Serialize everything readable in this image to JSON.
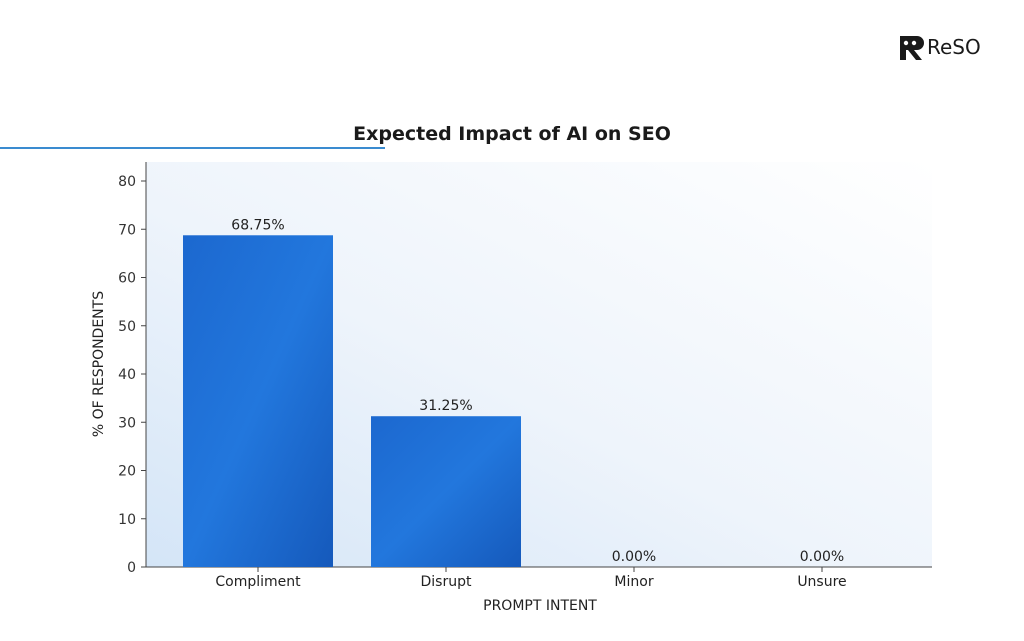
{
  "brand": {
    "name": "ReSO",
    "icon": "reso-logo-icon"
  },
  "colors": {
    "bar": "#1f6fd6",
    "bar_dark": "#1558b8",
    "title_underline": "#3a8bd0",
    "axis": "#444444"
  },
  "chart_data": {
    "type": "bar",
    "title": "Expected Impact of AI on SEO",
    "xlabel": "PROMPT INTENT",
    "ylabel": "% OF RESPONDENTS",
    "categories": [
      "Compliment",
      "Disrupt",
      "Minor",
      "Unsure"
    ],
    "values": [
      68.75,
      31.25,
      0,
      0
    ],
    "data_labels": [
      "68.75%",
      "31.25%",
      "0.00%",
      "0.00%"
    ],
    "ylim": [
      0,
      83
    ],
    "yticks": [
      0,
      10,
      20,
      30,
      40,
      50,
      60,
      70,
      80
    ],
    "grid": false,
    "legend": "none"
  }
}
